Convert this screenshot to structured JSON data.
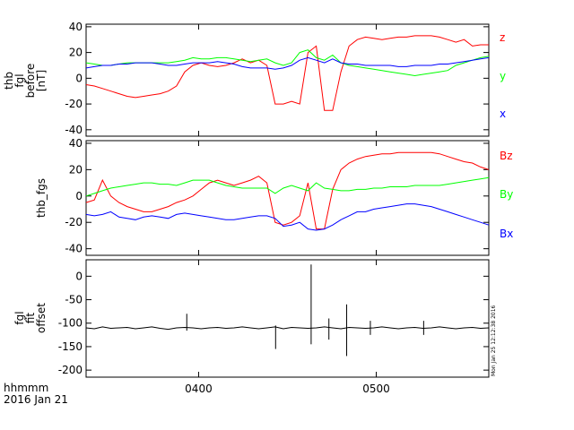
{
  "footer": {
    "time_format": "hhmmm",
    "date": "2016 Jan 21",
    "stamp": "Mon Jan 25 12:12:38 2016"
  },
  "chart_data": [
    {
      "type": "line",
      "ylabel_lines": [
        "thb",
        "fgl",
        "before",
        "[nT]"
      ],
      "x_ticks": [
        "0400",
        "0500"
      ],
      "y_ticks": [
        -40,
        -20,
        0,
        20,
        40
      ],
      "ylim": [
        -45,
        42
      ],
      "legend_placement": "right",
      "series": [
        {
          "name": "z",
          "color": "#ff0000",
          "values": [
            -5,
            -6,
            -8,
            -10,
            -12,
            -14,
            -15,
            -14,
            -13,
            -12,
            -10,
            -6,
            5,
            10,
            12,
            10,
            9,
            10,
            12,
            15,
            12,
            14,
            10,
            -20,
            -20,
            -18,
            -20,
            20,
            25,
            -25,
            -25,
            5,
            25,
            30,
            32,
            31,
            30,
            31,
            32,
            32,
            33,
            33,
            33,
            32,
            30,
            28,
            30,
            25,
            26,
            26
          ]
        },
        {
          "name": "y",
          "color": "#00ff00",
          "values": [
            12,
            11,
            10,
            10,
            11,
            12,
            12,
            12,
            12,
            12,
            12,
            13,
            14,
            16,
            15,
            15,
            16,
            16,
            15,
            14,
            13,
            14,
            15,
            12,
            10,
            12,
            20,
            22,
            16,
            14,
            18,
            12,
            10,
            9,
            8,
            7,
            6,
            5,
            4,
            3,
            2,
            3,
            4,
            5,
            6,
            10,
            12,
            14,
            16,
            17
          ]
        },
        {
          "name": "x",
          "color": "#0000ff",
          "values": [
            8,
            9,
            10,
            10,
            11,
            11,
            12,
            12,
            12,
            11,
            10,
            10,
            11,
            12,
            12,
            12,
            13,
            12,
            11,
            9,
            8,
            8,
            8,
            7,
            8,
            10,
            14,
            16,
            14,
            12,
            15,
            12,
            11,
            11,
            10,
            10,
            10,
            10,
            9,
            9,
            10,
            10,
            10,
            11,
            11,
            12,
            13,
            14,
            15,
            16
          ]
        }
      ]
    },
    {
      "type": "line",
      "ylabel": "thb_fgs",
      "x_ticks": [
        "0400",
        "0500"
      ],
      "y_ticks": [
        -40,
        -20,
        0,
        20,
        40
      ],
      "ylim": [
        -45,
        42
      ],
      "legend_placement": "right",
      "series": [
        {
          "name": "Bz",
          "color": "#ff0000",
          "values": [
            -5,
            -3,
            12,
            0,
            -5,
            -8,
            -10,
            -12,
            -12,
            -10,
            -8,
            -5,
            -3,
            0,
            5,
            10,
            12,
            10,
            8,
            10,
            12,
            15,
            10,
            -20,
            -22,
            -20,
            -15,
            10,
            -25,
            -25,
            5,
            20,
            25,
            28,
            30,
            31,
            32,
            32,
            33,
            33,
            33,
            33,
            33,
            32,
            30,
            28,
            26,
            25,
            22,
            20
          ]
        },
        {
          "name": "By",
          "color": "#00ff00",
          "values": [
            0,
            2,
            4,
            6,
            7,
            8,
            9,
            10,
            10,
            9,
            9,
            8,
            10,
            12,
            12,
            12,
            10,
            8,
            7,
            6,
            6,
            6,
            6,
            2,
            6,
            8,
            6,
            4,
            10,
            6,
            5,
            4,
            4,
            5,
            5,
            6,
            6,
            7,
            7,
            7,
            8,
            8,
            8,
            8,
            9,
            10,
            11,
            12,
            13,
            14
          ]
        },
        {
          "name": "Bx",
          "color": "#0000ff",
          "values": [
            -14,
            -15,
            -14,
            -12,
            -16,
            -17,
            -18,
            -16,
            -15,
            -16,
            -17,
            -14,
            -13,
            -14,
            -15,
            -16,
            -17,
            -18,
            -18,
            -17,
            -16,
            -15,
            -15,
            -17,
            -23,
            -22,
            -20,
            -25,
            -26,
            -25,
            -22,
            -18,
            -15,
            -12,
            -12,
            -10,
            -9,
            -8,
            -7,
            -6,
            -6,
            -7,
            -8,
            -10,
            -12,
            -14,
            -16,
            -18,
            -20,
            -22
          ]
        }
      ]
    },
    {
      "type": "line",
      "ylabel_lines": [
        "fgl",
        "fit",
        "offset"
      ],
      "x_ticks": [
        "0400",
        "0500"
      ],
      "y_ticks": [
        -200,
        -150,
        -100,
        -50,
        0
      ],
      "ylim": [
        -215,
        35
      ],
      "series": [
        {
          "color": "#000000",
          "values": [
            -110,
            -112,
            -108,
            -111,
            -110,
            -109,
            -112,
            -110,
            -108,
            -111,
            -113,
            -110,
            -109,
            -110,
            -112,
            -110,
            -109,
            -111,
            -110,
            -108,
            -110,
            -112,
            -110,
            -108,
            -112,
            -109,
            -110,
            -111,
            -110,
            -108,
            -110,
            -112,
            -109,
            -110,
            -111,
            -110,
            -108,
            -110,
            -112,
            -110,
            -109,
            -111,
            -110,
            -108,
            -110,
            -112,
            -110,
            -109,
            -111,
            -110
          ],
          "spikes": [
            {
              "x": "0356",
              "min": -116,
              "max": -80
            },
            {
              "x": "0426",
              "min": -155,
              "max": -105
            },
            {
              "x": "0438",
              "min": -145,
              "max": 25
            },
            {
              "x": "0444",
              "min": -135,
              "max": -90
            },
            {
              "x": "0450",
              "min": -170,
              "max": -60
            },
            {
              "x": "0458",
              "min": -125,
              "max": -95
            },
            {
              "x": "0516",
              "min": -125,
              "max": -95
            }
          ]
        }
      ]
    }
  ]
}
